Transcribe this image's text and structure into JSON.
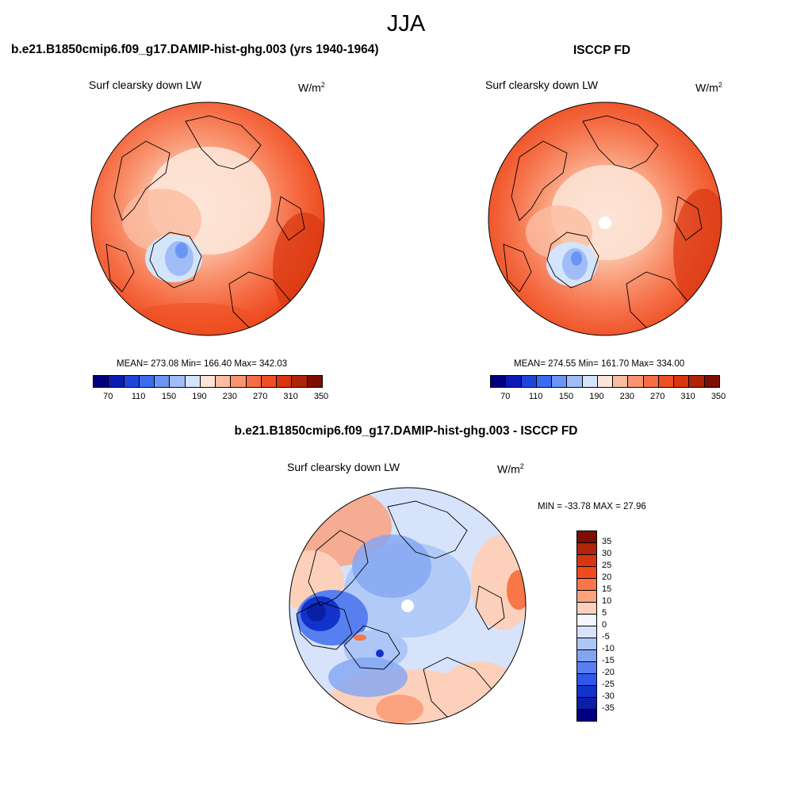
{
  "season": "JJA",
  "panels": [
    {
      "title": "b.e21.B1850cmip6.f09_g17.DAMIP-hist-ghg.003 (yrs 1940-1964)",
      "variable": "Surf clearsky down LW",
      "units": "W/m",
      "units_sup": "2",
      "stats": "MEAN= 273.08  Min= 166.40  Max= 342.03",
      "colorbar_ticks": [
        "70",
        "110",
        "150",
        "190",
        "230",
        "270",
        "310",
        "350"
      ]
    },
    {
      "title": "ISCCP FD",
      "variable": "Surf clearsky down LW",
      "units": "W/m",
      "units_sup": "2",
      "stats": "MEAN= 274.55  Min= 161.70  Max= 334.00",
      "colorbar_ticks": [
        "70",
        "110",
        "150",
        "190",
        "230",
        "270",
        "310",
        "350"
      ]
    }
  ],
  "diff": {
    "title": "b.e21.B1850cmip6.f09_g17.DAMIP-hist-ghg.003 - ISCCP FD",
    "variable": "Surf clearsky down LW",
    "units": "W/m",
    "units_sup": "2",
    "stats": "MIN = -33.78 MAX =  27.96",
    "colorbar_ticks": [
      "35",
      "30",
      "25",
      "20",
      "15",
      "10",
      "5",
      "0",
      "-5",
      "-10",
      "-15",
      "-20",
      "-25",
      "-30",
      "-35"
    ]
  },
  "colors": {
    "abs_scale": [
      "#00007f",
      "#0d1bb5",
      "#1f46dc",
      "#3a6cf0",
      "#6b95f5",
      "#a0bdf8",
      "#d4e4fa",
      "#fde4d6",
      "#fbbda1",
      "#f89470",
      "#f56d45",
      "#ee4e22",
      "#d8360f",
      "#b0240a",
      "#7e0d04"
    ],
    "diff_scale": [
      "#7e0d04",
      "#b0240a",
      "#d8360f",
      "#f14a1c",
      "#f87647",
      "#fba27f",
      "#fcd0ba",
      "#f4f7fd",
      "#d6e3fb",
      "#aec6f7",
      "#82a5f2",
      "#577ff0",
      "#2f58e8",
      "#1232cc",
      "#0b1fa5",
      "#00007f"
    ]
  }
}
